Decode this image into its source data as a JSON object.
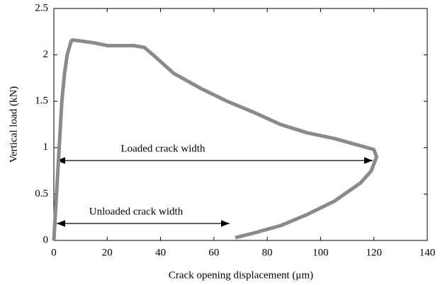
{
  "chart_data": {
    "type": "line",
    "xlabel": "Crack opening displacement (μm)",
    "ylabel": "Vertical load (kN)",
    "annotations": [
      "Loaded crack width",
      "Unloaded crack width"
    ],
    "x": [
      0,
      1,
      2,
      3,
      4,
      5,
      6.5,
      7,
      10,
      15,
      20,
      25,
      30,
      34,
      38,
      45,
      55,
      65,
      75,
      85,
      95,
      105,
      115,
      120,
      121,
      119,
      115,
      105,
      95,
      85,
      75,
      68
    ],
    "values": [
      0,
      0.5,
      1.0,
      1.5,
      1.8,
      2.0,
      2.15,
      2.16,
      2.15,
      2.13,
      2.1,
      2.1,
      2.1,
      2.08,
      1.98,
      1.8,
      1.64,
      1.5,
      1.38,
      1.25,
      1.16,
      1.1,
      1.02,
      0.98,
      0.9,
      0.75,
      0.62,
      0.42,
      0.28,
      0.16,
      0.08,
      0.03
    ],
    "color": "#8a8a8a",
    "xlim": [
      0,
      140
    ],
    "xticks": [
      0,
      20,
      40,
      60,
      80,
      100,
      120,
      140
    ],
    "ylim": [
      0,
      2.5
    ],
    "yticks": [
      0,
      0.5,
      1,
      1.5,
      2,
      2.5
    ]
  }
}
